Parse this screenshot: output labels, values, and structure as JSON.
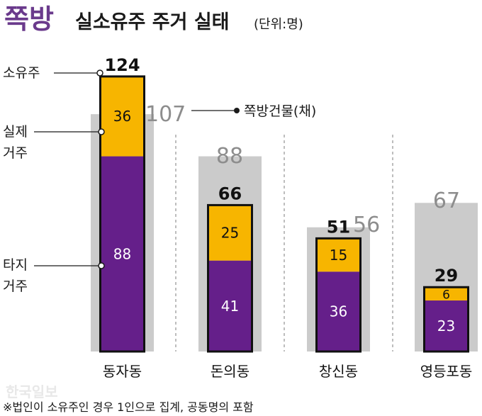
{
  "title": {
    "keyword": "쪽방",
    "main": "실소유주 주거 실태",
    "unit": "(단위:명)"
  },
  "labels": {
    "owner": "소유주",
    "resident_line1": "실제",
    "resident_line2": "거주",
    "elsewhere_line1": "타지",
    "elsewhere_line2": "거주",
    "buildings": "쪽방건물(채)"
  },
  "footnote": "※법인이 소유주인 경우 1인으로 집계, 공동명의 포함",
  "watermark": "한국일보",
  "colors": {
    "keyword": "#6a3a8c",
    "resident": "#f7b500",
    "elsewhere": "#651f8a",
    "building": "#cbcbcb",
    "outline": "#111111",
    "grey_text": "#8d8d8d"
  },
  "chart_data": {
    "type": "bar",
    "categories": [
      "동자동",
      "돈의동",
      "창신동",
      "영등포동"
    ],
    "series": [
      {
        "name": "실제 거주",
        "values": [
          36,
          25,
          15,
          6
        ]
      },
      {
        "name": "타지 거주",
        "values": [
          88,
          41,
          36,
          23
        ]
      }
    ],
    "owners_total": [
      124,
      66,
      51,
      29
    ],
    "buildings": {
      "name": "쪽방건물(채)",
      "values": [
        107,
        88,
        56,
        67
      ]
    },
    "ylim": [
      0,
      124
    ]
  }
}
